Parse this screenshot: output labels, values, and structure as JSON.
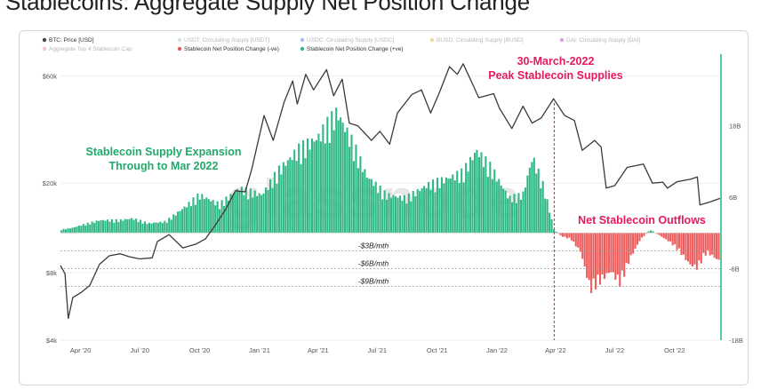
{
  "page_title": "Stablecoins: Aggregate Supply Net Position Change",
  "watermark": "glassnode",
  "colors": {
    "price": "#3a3a3a",
    "positive": "#2fb885",
    "negative": "#ef5a5a",
    "annotation_green": "#1faa6a",
    "annotation_red": "#e8195a",
    "right_axis_line": "#2fb885"
  },
  "chart_data": {
    "type": "bar+line",
    "legend_position": "top-left",
    "legend": [
      {
        "label": "BTC: Price [USD]",
        "color": "#444444",
        "dimmed": false
      },
      {
        "label": "USDT: Circulating Supply [USDT]",
        "color": "#a8e0c4",
        "dimmed": true
      },
      {
        "label": "USDC: Circulating Supply [USDC]",
        "color": "#6f93e8",
        "dimmed": true
      },
      {
        "label": "BUSD: Circulating Supply [BUSD]",
        "color": "#e8c25f",
        "dimmed": true
      },
      {
        "label": "DAI: Circulating Supply [DAI]",
        "color": "#c45ad8",
        "dimmed": true
      },
      {
        "label": "Aggregate Top 4 Stablecoin Cap",
        "color": "#f4a0a0",
        "dimmed": true
      },
      {
        "label": "Stablecoin Net Position Change (-ve)",
        "color": "#ef5a5a",
        "dimmed": false
      },
      {
        "label": "Stablecoin Net Position Change (+ve)",
        "color": "#2fb885",
        "dimmed": false
      }
    ],
    "x_ticks": [
      "Apr '20",
      "Jul '20",
      "Oct '20",
      "Jan '21",
      "Apr '21",
      "Jul '21",
      "Oct '21",
      "Jan '22",
      "Apr '22",
      "Jul '22",
      "Oct '22"
    ],
    "x_range": [
      "2020-03-01",
      "2022-12-10"
    ],
    "left_axis": {
      "scale": "log",
      "ticks": [
        "$4k",
        "$8k",
        "$20k",
        "$60k"
      ],
      "tick_values": [
        4000,
        8000,
        20000,
        60000
      ],
      "range": [
        4000,
        75000
      ]
    },
    "right_axis": {
      "ticks": [
        "18B",
        "6B",
        "-6B",
        "-18B"
      ],
      "tick_values": [
        18,
        6,
        -6,
        -18
      ],
      "range": [
        -18,
        30
      ],
      "unit": "B"
    },
    "reference_lines": [
      {
        "label": "-$3B/mth",
        "value": -3
      },
      {
        "label": "-$6B/mth",
        "value": -6
      },
      {
        "label": "-$9B/mth",
        "value": -9
      }
    ],
    "annotations": [
      {
        "text": "Stablecoin Supply Expansion",
        "color": "green"
      },
      {
        "text": "Through to Mar 2022",
        "color": "green"
      },
      {
        "text": "30-March-2022",
        "color": "red"
      },
      {
        "text": "Peak Stablecoin Supplies",
        "color": "red"
      },
      {
        "text": "Net Stablecoin Outflows",
        "color": "red"
      }
    ],
    "peak_date": "2022-03-30",
    "price_series": {
      "name": "BTC: Price [USD]",
      "points": [
        [
          "2020-03-01",
          8600
        ],
        [
          "2020-03-08",
          7900
        ],
        [
          "2020-03-13",
          5000
        ],
        [
          "2020-03-20",
          6200
        ],
        [
          "2020-04-01",
          6500
        ],
        [
          "2020-04-15",
          7000
        ],
        [
          "2020-04-30",
          8700
        ],
        [
          "2020-05-15",
          9500
        ],
        [
          "2020-06-01",
          9700
        ],
        [
          "2020-06-15",
          9400
        ],
        [
          "2020-07-01",
          9200
        ],
        [
          "2020-07-20",
          9300
        ],
        [
          "2020-07-28",
          11000
        ],
        [
          "2020-08-15",
          11800
        ],
        [
          "2020-09-05",
          10300
        ],
        [
          "2020-09-25",
          10700
        ],
        [
          "2020-10-10",
          11300
        ],
        [
          "2020-10-25",
          13000
        ],
        [
          "2020-11-10",
          15300
        ],
        [
          "2020-11-25",
          18500
        ],
        [
          "2020-12-10",
          18300
        ],
        [
          "2020-12-20",
          23000
        ],
        [
          "2021-01-08",
          40000
        ],
        [
          "2021-01-22",
          31000
        ],
        [
          "2021-02-08",
          46000
        ],
        [
          "2021-02-21",
          57000
        ],
        [
          "2021-02-28",
          45000
        ],
        [
          "2021-03-13",
          61000
        ],
        [
          "2021-03-25",
          52000
        ],
        [
          "2021-04-14",
          64000
        ],
        [
          "2021-04-25",
          49000
        ],
        [
          "2021-05-08",
          58000
        ],
        [
          "2021-05-19",
          37000
        ],
        [
          "2021-06-01",
          36000
        ],
        [
          "2021-06-22",
          31000
        ],
        [
          "2021-07-05",
          34000
        ],
        [
          "2021-07-20",
          29800
        ],
        [
          "2021-08-01",
          41000
        ],
        [
          "2021-08-23",
          49500
        ],
        [
          "2021-09-07",
          52000
        ],
        [
          "2021-09-21",
          41000
        ],
        [
          "2021-10-05",
          51000
        ],
        [
          "2021-10-20",
          66000
        ],
        [
          "2021-11-01",
          61000
        ],
        [
          "2021-11-10",
          68000
        ],
        [
          "2021-11-26",
          54000
        ],
        [
          "2021-12-04",
          48000
        ],
        [
          "2021-12-27",
          50000
        ],
        [
          "2022-01-05",
          43000
        ],
        [
          "2022-01-24",
          35000
        ],
        [
          "2022-02-10",
          44000
        ],
        [
          "2022-02-24",
          37000
        ],
        [
          "2022-03-10",
          39000
        ],
        [
          "2022-03-29",
          47500
        ],
        [
          "2022-04-15",
          40000
        ],
        [
          "2022-04-30",
          38000
        ],
        [
          "2022-05-12",
          28000
        ],
        [
          "2022-05-31",
          31000
        ],
        [
          "2022-06-10",
          29000
        ],
        [
          "2022-06-18",
          19000
        ],
        [
          "2022-07-01",
          19500
        ],
        [
          "2022-07-20",
          23500
        ],
        [
          "2022-08-14",
          24300
        ],
        [
          "2022-08-28",
          20000
        ],
        [
          "2022-09-13",
          20200
        ],
        [
          "2022-09-20",
          19000
        ],
        [
          "2022-10-05",
          20300
        ],
        [
          "2022-10-25",
          20800
        ],
        [
          "2022-11-05",
          21300
        ],
        [
          "2022-11-09",
          16000
        ],
        [
          "2022-11-25",
          16500
        ],
        [
          "2022-12-10",
          17100
        ]
      ]
    },
    "net_change_series": {
      "name": "Stablecoin Net Position Change",
      "unit": "B",
      "points": [
        [
          "2020-03-01",
          0.5
        ],
        [
          "2020-03-20",
          0.8
        ],
        [
          "2020-04-01",
          1.2
        ],
        [
          "2020-05-01",
          2.0
        ],
        [
          "2020-06-01",
          2.0
        ],
        [
          "2020-06-20",
          2.3
        ],
        [
          "2020-07-15",
          1.5
        ],
        [
          "2020-08-10",
          1.8
        ],
        [
          "2020-09-10",
          4.2
        ],
        [
          "2020-10-01",
          6.0
        ],
        [
          "2020-11-01",
          4.5
        ],
        [
          "2020-12-01",
          7.0
        ],
        [
          "2021-01-05",
          6.0
        ],
        [
          "2021-02-01",
          10.0
        ],
        [
          "2021-03-01",
          13.0
        ],
        [
          "2021-04-01",
          15.0
        ],
        [
          "2021-05-01",
          19.0
        ],
        [
          "2021-05-25",
          14.0
        ],
        [
          "2021-06-15",
          9.0
        ],
        [
          "2021-07-15",
          6.0
        ],
        [
          "2021-08-15",
          5.5
        ],
        [
          "2021-09-15",
          7.5
        ],
        [
          "2021-10-15",
          8.5
        ],
        [
          "2021-11-10",
          9.5
        ],
        [
          "2021-12-01",
          13.0
        ],
        [
          "2021-12-25",
          10.0
        ],
        [
          "2022-01-20",
          5.5
        ],
        [
          "2022-02-10",
          6.0
        ],
        [
          "2022-02-25",
          12.0
        ],
        [
          "2022-03-15",
          7.0
        ],
        [
          "2022-03-30",
          0.5
        ],
        [
          "2022-04-10",
          -0.5
        ],
        [
          "2022-04-25",
          -1.0
        ],
        [
          "2022-05-10",
          -3.0
        ],
        [
          "2022-05-25",
          -9.0
        ],
        [
          "2022-06-10",
          -7.5
        ],
        [
          "2022-06-25",
          -6.0
        ],
        [
          "2022-07-10",
          -8.0
        ],
        [
          "2022-07-25",
          -4.0
        ],
        [
          "2022-08-10",
          -1.0
        ],
        [
          "2022-08-25",
          0.5
        ],
        [
          "2022-09-10",
          -0.5
        ],
        [
          "2022-09-25",
          -1.5
        ],
        [
          "2022-10-10",
          -3.0
        ],
        [
          "2022-10-25",
          -5.0
        ],
        [
          "2022-11-05",
          -5.5
        ],
        [
          "2022-11-20",
          -3.0
        ],
        [
          "2022-12-10",
          -4.5
        ]
      ]
    }
  }
}
